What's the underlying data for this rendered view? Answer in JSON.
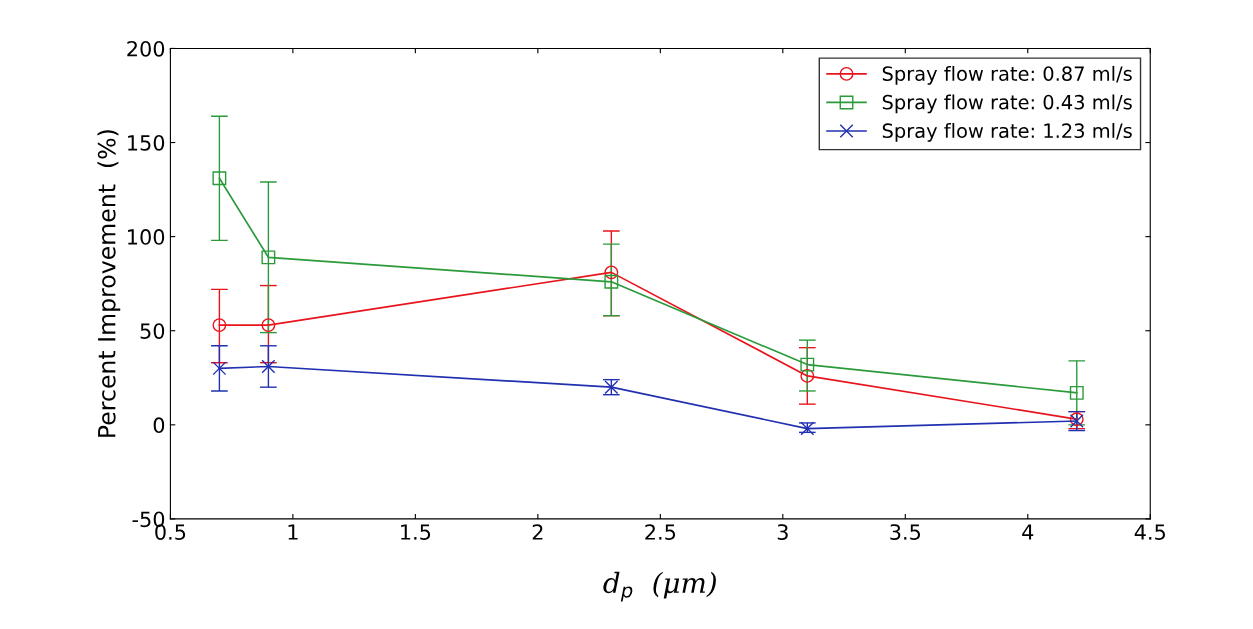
{
  "chart_data": {
    "type": "line",
    "xlabel": "d$_{p}$  (μm)",
    "ylabel": "Percent Improvement  (%)",
    "x": [
      0.7,
      0.9,
      2.3,
      3.1,
      4.2
    ],
    "series": [
      {
        "name": "Spray flow rate: 0.87 ml/s",
        "color": "#e8141c",
        "marker": "circle",
        "values": [
          53,
          53,
          81,
          26,
          3
        ],
        "errors": [
          [
            33,
            72
          ],
          [
            33,
            74
          ],
          [
            58,
            103
          ],
          [
            11,
            41
          ],
          [
            -2,
            7
          ]
        ]
      },
      {
        "name": "Spray flow rate: 0.43 ml/s",
        "color": "#2a9a3a",
        "marker": "square",
        "values": [
          131,
          89,
          76,
          32,
          17
        ],
        "errors": [
          [
            98,
            164
          ],
          [
            49,
            129
          ],
          [
            58,
            96
          ],
          [
            18,
            45
          ],
          [
            0,
            34
          ]
        ]
      },
      {
        "name": "Spray flow rate: 1.23 ml/s",
        "color": "#2030b0",
        "marker": "cross",
        "values": [
          30,
          31,
          20,
          -2,
          2
        ],
        "errors": [
          [
            18,
            42
          ],
          [
            20,
            42
          ],
          [
            16,
            24
          ],
          [
            -4,
            1
          ],
          [
            -3,
            7
          ]
        ]
      }
    ],
    "xlim": [
      0.5,
      4.5
    ],
    "xticks": [
      0.5,
      1,
      1.5,
      2,
      2.5,
      3,
      3.5,
      4,
      4.5
    ],
    "ylim": [
      -50,
      200
    ],
    "yticks": [
      -50,
      0,
      50,
      100,
      150,
      200
    ],
    "grid": false,
    "legend": "top right",
    "line_style": "solid"
  }
}
